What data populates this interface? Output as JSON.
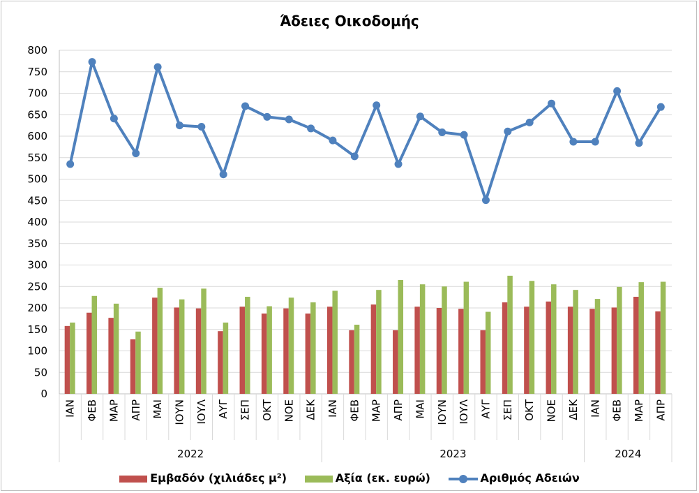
{
  "chart_data": {
    "type": "bar+line",
    "title": "Άδειες Οικοδομής",
    "categories": [
      "ΙΑΝ",
      "ΦΕΒ",
      "ΜΑΡ",
      "ΑΠΡ",
      "ΜΑΙ",
      "ΙΟΥΝ",
      "ΙΟΥΛ",
      "ΑΥΓ",
      "ΣΕΠ",
      "ΟΚΤ",
      "ΝΟΕ",
      "ΔΕΚ",
      "ΙΑΝ",
      "ΦΕΒ",
      "ΜΑΡ",
      "ΑΠΡ",
      "ΜΑΙ",
      "ΙΟΥΝ",
      "ΙΟΥΛ",
      "ΑΥΓ",
      "ΣΕΠ",
      "ΟΚΤ",
      "ΝΟΕ",
      "ΔΕΚ",
      "ΙΑΝ",
      "ΦΕΒ",
      "ΜΑΡ",
      "ΑΠΡ"
    ],
    "year_groups": [
      {
        "label": "2022",
        "start": 0,
        "count": 12
      },
      {
        "label": "2023",
        "start": 12,
        "count": 12
      },
      {
        "label": "2024",
        "start": 24,
        "count": 4
      }
    ],
    "yticks": [
      0,
      50,
      100,
      150,
      200,
      250,
      300,
      350,
      400,
      450,
      500,
      550,
      600,
      650,
      700,
      750,
      800
    ],
    "ylim": [
      0,
      800
    ],
    "grid": true,
    "legend_position": "bottom",
    "series": [
      {
        "name": "Εμβαδόν (χιλιάδες μ²)",
        "kind": "bar",
        "color": "#c0504d",
        "values": [
          158,
          189,
          177,
          127,
          224,
          201,
          199,
          146,
          203,
          187,
          199,
          187,
          203,
          148,
          208,
          148,
          203,
          200,
          198,
          148,
          213,
          203,
          215,
          203,
          198,
          201,
          226,
          192
        ]
      },
      {
        "name": "Αξία (εκ. ευρώ)",
        "kind": "bar",
        "color": "#9bbb59",
        "values": [
          166,
          228,
          210,
          145,
          247,
          220,
          245,
          166,
          226,
          204,
          224,
          213,
          240,
          161,
          242,
          265,
          255,
          250,
          261,
          191,
          275,
          263,
          255,
          242,
          221,
          249,
          260,
          261
        ]
      },
      {
        "name": "Αριθμός Αδειών",
        "kind": "line",
        "color": "#4f81bd",
        "values": [
          535,
          773,
          641,
          560,
          761,
          625,
          622,
          511,
          670,
          645,
          639,
          618,
          590,
          553,
          672,
          535,
          646,
          609,
          603,
          451,
          611,
          632,
          676,
          587,
          587,
          705,
          584,
          668
        ]
      }
    ]
  }
}
